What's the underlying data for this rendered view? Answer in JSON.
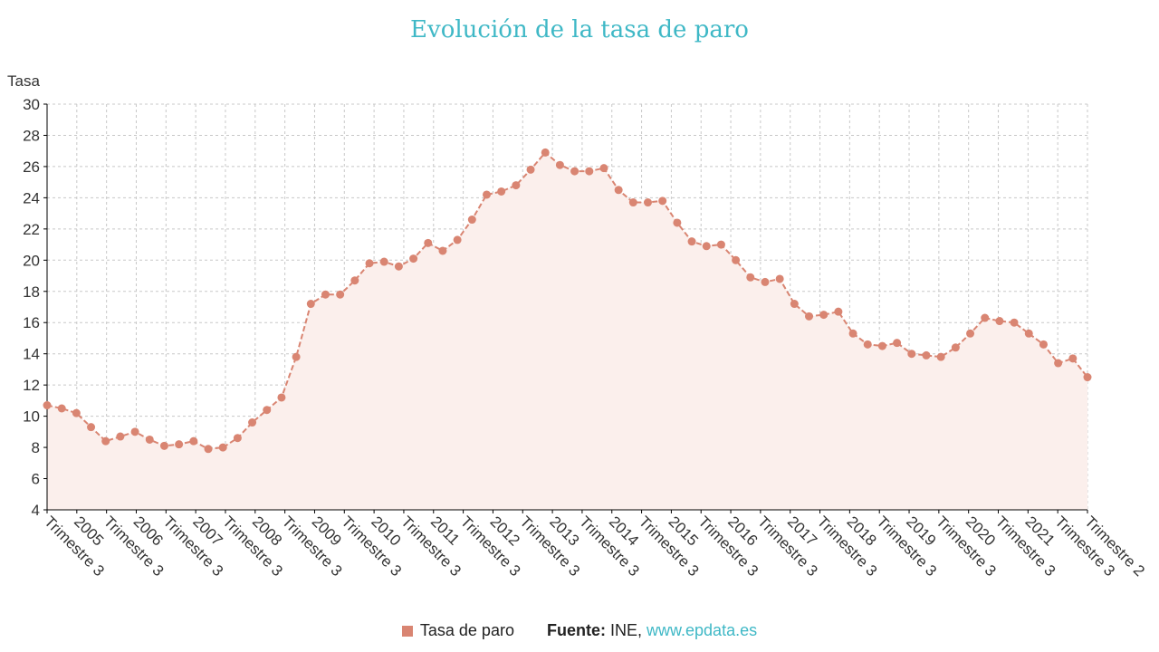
{
  "colors": {
    "series": "#d98572",
    "fill": "#fbefec",
    "grid": "#c8c8c8",
    "title": "#3fb8c6",
    "link": "#3fb8c6"
  },
  "legend": {
    "series_label": "Tasa de paro",
    "source_label": "Fuente:",
    "source_text": "INE,",
    "source_link": "www.epdata.es"
  },
  "chart_data": {
    "type": "area",
    "title": "Evolución de la tasa de paro",
    "ylabel": "Tasa",
    "xlabel": "",
    "ylim": [
      4,
      30
    ],
    "yticks": [
      4,
      6,
      8,
      10,
      12,
      14,
      16,
      18,
      20,
      22,
      24,
      26,
      28,
      30
    ],
    "grid": true,
    "legend_position": "bottom",
    "x_labels": [
      "Trimestre 3",
      "2005",
      "Trimestre 3",
      "2006",
      "Trimestre 3",
      "2007",
      "Trimestre 3",
      "2008",
      "Trimestre 3",
      "2009",
      "Trimestre 3",
      "2010",
      "Trimestre 3",
      "2011",
      "Trimestre 3",
      "2012",
      "Trimestre 3",
      "2013",
      "Trimestre 3",
      "2014",
      "Trimestre 3",
      "2015",
      "Trimestre 3",
      "2016",
      "Trimestre 3",
      "2017",
      "Trimestre 3",
      "2018",
      "Trimestre 3",
      "2019",
      "Trimestre 3",
      "2020",
      "Trimestre 3",
      "2021",
      "Trimestre 3",
      "Trimestre 2"
    ],
    "series": [
      {
        "name": "Tasa de paro",
        "values": [
          10.7,
          10.5,
          10.2,
          9.3,
          8.4,
          8.7,
          9.0,
          8.5,
          8.1,
          8.2,
          8.4,
          7.9,
          8.0,
          8.6,
          9.6,
          10.4,
          11.2,
          13.8,
          17.2,
          17.8,
          17.8,
          18.7,
          19.8,
          19.9,
          19.6,
          20.1,
          21.1,
          20.6,
          21.3,
          22.6,
          24.2,
          24.4,
          24.8,
          25.8,
          26.9,
          26.1,
          25.7,
          25.7,
          25.9,
          24.5,
          23.7,
          23.7,
          23.8,
          22.4,
          21.2,
          20.9,
          21.0,
          20.0,
          18.9,
          18.6,
          18.8,
          17.2,
          16.4,
          16.5,
          16.7,
          15.3,
          14.6,
          14.5,
          14.7,
          14.0,
          13.9,
          13.8,
          14.4,
          15.3,
          16.3,
          16.1,
          16.0,
          15.3,
          14.6,
          13.4,
          13.7,
          12.5
        ]
      }
    ]
  }
}
